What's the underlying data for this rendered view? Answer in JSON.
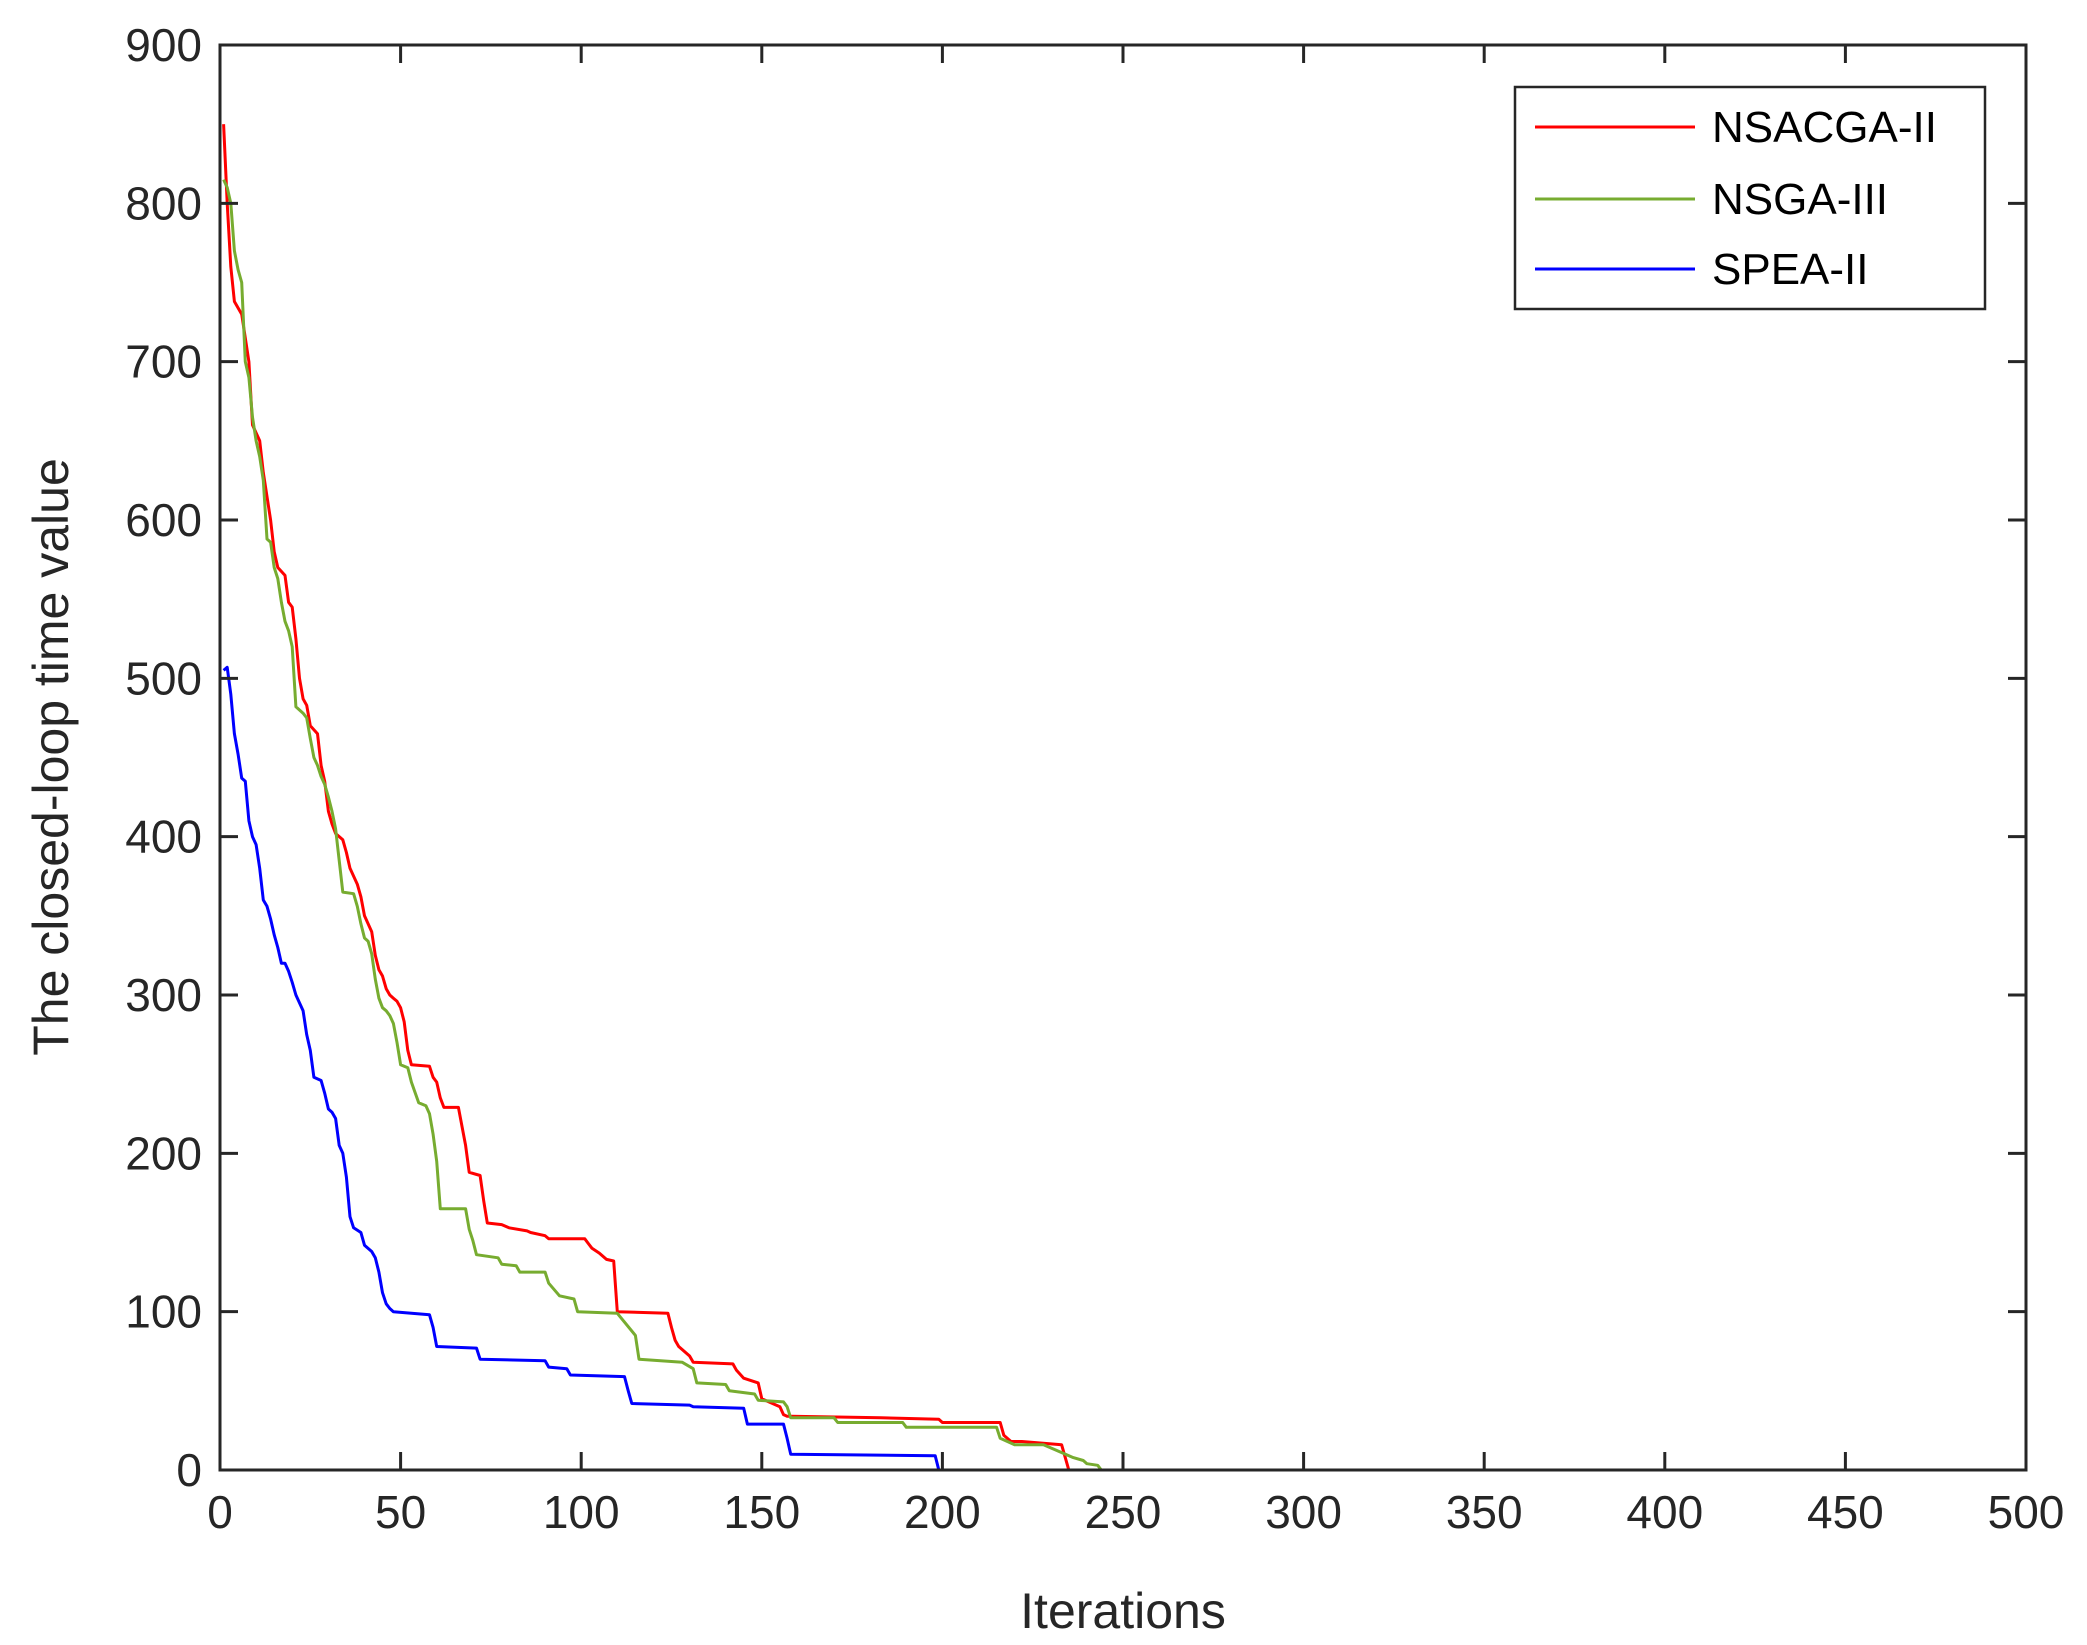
{
  "chart_data": {
    "type": "line",
    "title": "",
    "xlabel": "Iterations",
    "ylabel": "The closed-loop time value",
    "xlim": [
      0,
      500
    ],
    "ylim": [
      0,
      900
    ],
    "x_ticks": [
      "0",
      "50",
      "100",
      "150",
      "200",
      "250",
      "300",
      "350",
      "400",
      "450",
      "500"
    ],
    "y_ticks": [
      "0",
      "100",
      "200",
      "300",
      "400",
      "500",
      "600",
      "700",
      "800",
      "900"
    ],
    "grid": false,
    "legend_position": "top-right",
    "series": [
      {
        "name": "NSACGA-II",
        "color": "#ff0000",
        "points": [
          [
            1,
            850
          ],
          [
            2,
            800
          ],
          [
            3,
            760
          ],
          [
            4,
            738
          ],
          [
            6,
            730
          ],
          [
            8,
            700
          ],
          [
            9,
            660
          ],
          [
            10,
            655
          ],
          [
            11,
            650
          ],
          [
            12,
            630
          ],
          [
            14,
            600
          ],
          [
            15,
            580
          ],
          [
            16,
            570
          ],
          [
            18,
            565
          ],
          [
            19,
            548
          ],
          [
            20,
            545
          ],
          [
            21,
            525
          ],
          [
            22,
            500
          ],
          [
            23,
            487
          ],
          [
            24,
            483
          ],
          [
            25,
            470
          ],
          [
            27,
            465
          ],
          [
            28,
            445
          ],
          [
            29,
            435
          ],
          [
            30,
            416
          ],
          [
            31,
            408
          ],
          [
            32,
            402
          ],
          [
            34,
            398
          ],
          [
            35,
            390
          ],
          [
            36,
            380
          ],
          [
            38,
            370
          ],
          [
            39,
            362
          ],
          [
            40,
            350
          ],
          [
            41,
            345
          ],
          [
            42,
            340
          ],
          [
            43,
            325
          ],
          [
            44,
            316
          ],
          [
            45,
            312
          ],
          [
            46,
            304
          ],
          [
            47,
            300
          ],
          [
            48,
            298
          ],
          [
            49,
            296
          ],
          [
            50,
            292
          ],
          [
            51,
            283
          ],
          [
            52,
            265
          ],
          [
            53,
            256
          ],
          [
            58,
            255
          ],
          [
            59,
            248
          ],
          [
            60,
            245
          ],
          [
            61,
            235
          ],
          [
            62,
            229
          ],
          [
            66,
            229
          ],
          [
            68,
            205
          ],
          [
            69,
            188
          ],
          [
            72,
            186
          ],
          [
            73,
            170
          ],
          [
            74,
            156
          ],
          [
            78,
            155
          ],
          [
            80,
            153
          ],
          [
            85,
            151
          ],
          [
            86,
            150
          ],
          [
            90,
            148
          ],
          [
            91,
            146
          ],
          [
            101,
            146
          ],
          [
            102,
            143
          ],
          [
            103,
            140
          ],
          [
            105,
            137
          ],
          [
            107,
            133
          ],
          [
            109,
            132
          ],
          [
            110,
            100
          ],
          [
            124,
            99
          ],
          [
            125,
            90
          ],
          [
            126,
            82
          ],
          [
            127,
            78
          ],
          [
            130,
            72
          ],
          [
            131,
            68
          ],
          [
            142,
            67
          ],
          [
            143,
            63
          ],
          [
            145,
            58
          ],
          [
            149,
            55
          ],
          [
            150,
            45
          ],
          [
            155,
            40
          ],
          [
            156,
            35
          ],
          [
            157,
            34
          ],
          [
            158,
            34
          ],
          [
            183,
            33
          ],
          [
            199,
            32
          ],
          [
            200,
            30
          ],
          [
            216,
            30
          ],
          [
            217,
            22
          ],
          [
            219,
            18
          ],
          [
            222,
            18
          ],
          [
            233,
            16
          ],
          [
            234,
            8
          ],
          [
            235,
            0
          ],
          [
            500,
            0
          ]
        ]
      },
      {
        "name": "NSGA-III",
        "color": "#77ac30",
        "points": [
          [
            1,
            815
          ],
          [
            2,
            810
          ],
          [
            3,
            800
          ],
          [
            4,
            770
          ],
          [
            5,
            758
          ],
          [
            6,
            750
          ],
          [
            7,
            700
          ],
          [
            8,
            690
          ],
          [
            9,
            665
          ],
          [
            10,
            650
          ],
          [
            11,
            640
          ],
          [
            12,
            625
          ],
          [
            13,
            588
          ],
          [
            14,
            586
          ],
          [
            15,
            570
          ],
          [
            16,
            563
          ],
          [
            17,
            548
          ],
          [
            18,
            536
          ],
          [
            19,
            530
          ],
          [
            20,
            520
          ],
          [
            21,
            482
          ],
          [
            22,
            480
          ],
          [
            23,
            478
          ],
          [
            24,
            475
          ],
          [
            25,
            462
          ],
          [
            26,
            450
          ],
          [
            27,
            445
          ],
          [
            28,
            438
          ],
          [
            29,
            433
          ],
          [
            30,
            425
          ],
          [
            31,
            416
          ],
          [
            32,
            405
          ],
          [
            33,
            385
          ],
          [
            34,
            365
          ],
          [
            37,
            364
          ],
          [
            38,
            356
          ],
          [
            39,
            345
          ],
          [
            40,
            336
          ],
          [
            41,
            334
          ],
          [
            42,
            326
          ],
          [
            43,
            310
          ],
          [
            44,
            298
          ],
          [
            45,
            292
          ],
          [
            46,
            290
          ],
          [
            47,
            287
          ],
          [
            48,
            282
          ],
          [
            49,
            270
          ],
          [
            50,
            256
          ],
          [
            52,
            254
          ],
          [
            53,
            245
          ],
          [
            55,
            232
          ],
          [
            57,
            230
          ],
          [
            58,
            225
          ],
          [
            59,
            212
          ],
          [
            60,
            195
          ],
          [
            61,
            165
          ],
          [
            68,
            165
          ],
          [
            69,
            152
          ],
          [
            70,
            145
          ],
          [
            71,
            136
          ],
          [
            77,
            134
          ],
          [
            78,
            130
          ],
          [
            82,
            129
          ],
          [
            83,
            125
          ],
          [
            90,
            125
          ],
          [
            91,
            118
          ],
          [
            94,
            110
          ],
          [
            98,
            108
          ],
          [
            99,
            100
          ],
          [
            110,
            99
          ],
          [
            115,
            85
          ],
          [
            116,
            70
          ],
          [
            128,
            68
          ],
          [
            131,
            64
          ],
          [
            132,
            55
          ],
          [
            140,
            54
          ],
          [
            141,
            50
          ],
          [
            148,
            48
          ],
          [
            149,
            44
          ],
          [
            156,
            43
          ],
          [
            157,
            40
          ],
          [
            158,
            33
          ],
          [
            170,
            33
          ],
          [
            171,
            30
          ],
          [
            189,
            30
          ],
          [
            190,
            27
          ],
          [
            215,
            27
          ],
          [
            216,
            20
          ],
          [
            220,
            16
          ],
          [
            228,
            16
          ],
          [
            232,
            12
          ],
          [
            236,
            8
          ],
          [
            239,
            6
          ],
          [
            240,
            4
          ],
          [
            243,
            3
          ],
          [
            244,
            0
          ],
          [
            500,
            0
          ]
        ]
      },
      {
        "name": "SPEA-II",
        "color": "#0000ff",
        "points": [
          [
            1,
            505
          ],
          [
            2,
            507
          ],
          [
            3,
            490
          ],
          [
            4,
            465
          ],
          [
            5,
            452
          ],
          [
            6,
            437
          ],
          [
            7,
            435
          ],
          [
            8,
            410
          ],
          [
            9,
            400
          ],
          [
            10,
            395
          ],
          [
            11,
            380
          ],
          [
            12,
            360
          ],
          [
            13,
            356
          ],
          [
            14,
            348
          ],
          [
            15,
            338
          ],
          [
            16,
            330
          ],
          [
            17,
            320
          ],
          [
            18,
            320
          ],
          [
            19,
            315
          ],
          [
            20,
            308
          ],
          [
            21,
            300
          ],
          [
            22,
            295
          ],
          [
            23,
            290
          ],
          [
            24,
            275
          ],
          [
            25,
            265
          ],
          [
            26,
            248
          ],
          [
            27,
            247
          ],
          [
            28,
            246
          ],
          [
            29,
            238
          ],
          [
            30,
            228
          ],
          [
            31,
            226
          ],
          [
            32,
            222
          ],
          [
            33,
            205
          ],
          [
            34,
            200
          ],
          [
            35,
            185
          ],
          [
            36,
            160
          ],
          [
            37,
            153
          ],
          [
            39,
            150
          ],
          [
            40,
            142
          ],
          [
            42,
            138
          ],
          [
            43,
            134
          ],
          [
            44,
            125
          ],
          [
            45,
            112
          ],
          [
            46,
            105
          ],
          [
            47,
            102
          ],
          [
            48,
            100
          ],
          [
            58,
            98
          ],
          [
            59,
            90
          ],
          [
            60,
            78
          ],
          [
            71,
            77
          ],
          [
            72,
            70
          ],
          [
            90,
            69
          ],
          [
            91,
            65
          ],
          [
            96,
            64
          ],
          [
            97,
            60
          ],
          [
            112,
            59
          ],
          [
            113,
            50
          ],
          [
            114,
            42
          ],
          [
            130,
            41
          ],
          [
            131,
            40
          ],
          [
            145,
            39
          ],
          [
            146,
            29
          ],
          [
            156,
            29
          ],
          [
            157,
            20
          ],
          [
            158,
            10
          ],
          [
            198,
            9
          ],
          [
            199,
            0
          ],
          [
            500,
            0
          ]
        ]
      }
    ]
  }
}
